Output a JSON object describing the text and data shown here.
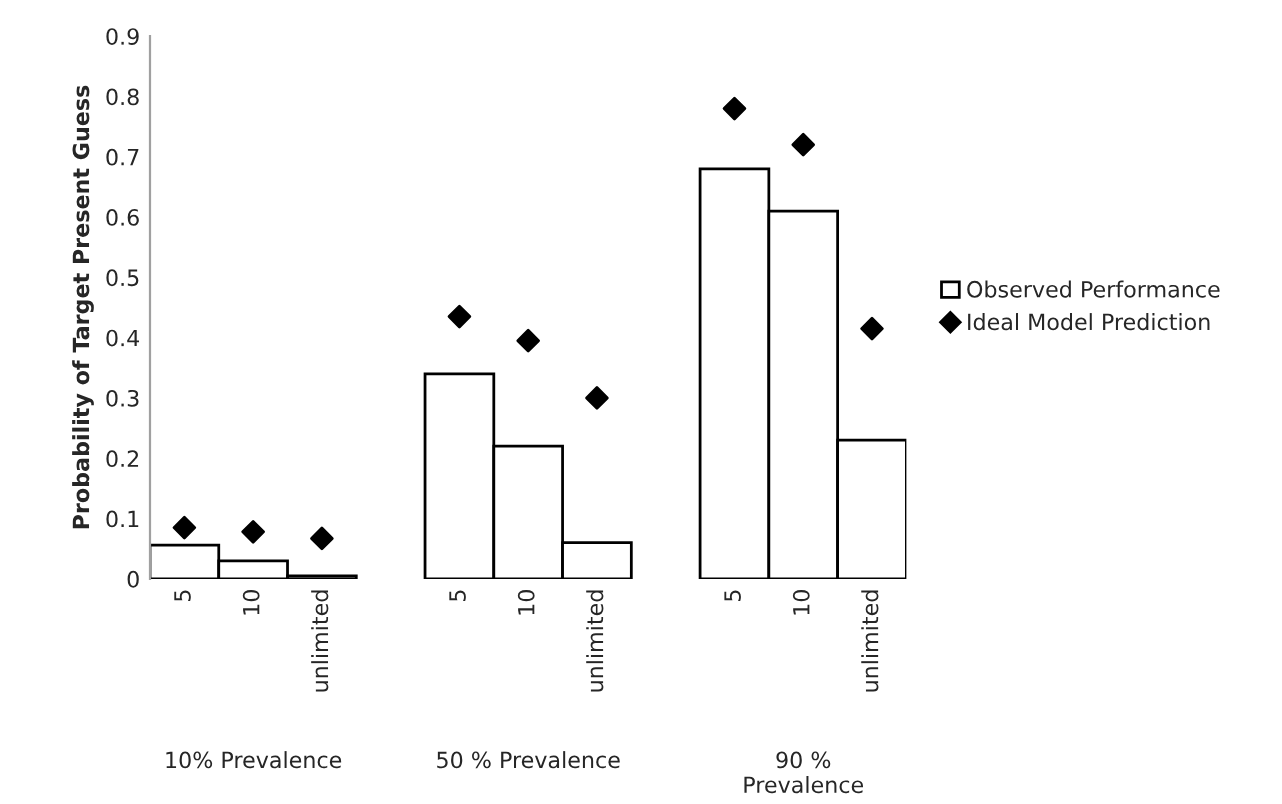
{
  "chart_data": {
    "type": "bar",
    "ylabel": "Probability of Target Present Guess",
    "categories": [
      "5",
      "10",
      "unlimited",
      null,
      "5",
      "10",
      "unlimited",
      null,
      "5",
      "10",
      "unlimited"
    ],
    "series": [
      {
        "name": "Observed Performance",
        "color": "#ffffff",
        "values": [
          0.056,
          0.03,
          0.005,
          null,
          0.34,
          0.22,
          0.06,
          null,
          0.68,
          0.61,
          0.23
        ]
      },
      {
        "name": "Ideal Model Prediction",
        "type": "scatter",
        "color": "#000000",
        "marker": "diamond",
        "values": [
          0.085,
          0.078,
          0.067,
          null,
          0.435,
          0.395,
          0.3,
          null,
          0.78,
          0.72,
          0.415
        ]
      }
    ],
    "annotations": [
      "10% Prevalence",
      "50 % Prevalence",
      "90 %\nPrevalence"
    ],
    "ylim": [
      0,
      0.9
    ],
    "yticks": [
      {
        "value": 0,
        "label": "0"
      },
      0.1,
      0.2,
      0.3,
      0.4,
      0.5,
      0.6,
      0.7,
      0.8,
      0.9
    ],
    "grid": false,
    "legend": "right"
  }
}
